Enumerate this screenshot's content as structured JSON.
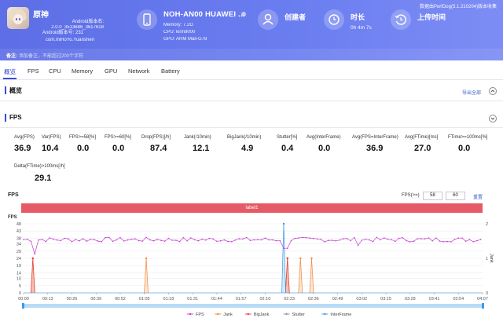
{
  "header": {
    "app_name": "原神",
    "android_version_line": "Android版本名:",
    "version_name": "2.0.0_3513686_3617618",
    "version_code_line": "Android版本号: 231",
    "package": "com.miHoYo.Yuanshen",
    "device_name": "NOH-AN00 HUAWEI ...",
    "memory": "Memory: 7.2G",
    "cpu": "CPU: kirin9000",
    "gpu": "GPU: ARM Mali-G78",
    "creator_label": "创建者",
    "creator_value": "",
    "duration_label": "时长",
    "duration_value": "0h 4m 7s",
    "upload_label": "上传时间",
    "upload_value": "",
    "data_source": "数据由PerfDog(5.1.210204)版本收集",
    "note_label": "备注:",
    "note_placeholder": "添加备注，不能超过200个字符"
  },
  "tabs": [
    "概览",
    "FPS",
    "CPU",
    "Memory",
    "GPU",
    "Network",
    "Battery"
  ],
  "overview": {
    "title": "概览",
    "export": "导出全部"
  },
  "fps_section": {
    "title": "FPS",
    "metrics": [
      {
        "label": "Avg(FPS)",
        "value": "36.9"
      },
      {
        "label": "Var(FPS)",
        "value": "10.4"
      },
      {
        "label": "FPS>=58[%]",
        "value": "0.0"
      },
      {
        "label": "FPS>=60[%]",
        "value": "0.0"
      },
      {
        "label": "Drop(FPS)[/h]",
        "value": "87.4"
      },
      {
        "label": "Jank(/10min)",
        "value": "12.1"
      },
      {
        "label": "BigJank(/10min)",
        "value": "4.9"
      },
      {
        "label": "Stutter[%]",
        "value": "0.4"
      },
      {
        "label": "Avg(InterFrame)",
        "value": "0.0"
      },
      {
        "label": "Avg(FPS=InterFrame)",
        "value": "36.9"
      },
      {
        "label": "Avg(FTime)[ms]",
        "value": "27.0"
      },
      {
        "label": "FTime>=100ms[%]",
        "value": "0.0"
      },
      {
        "label": "Delta(FTime)>100ms[/h]",
        "value": "29.1"
      }
    ],
    "chart_label": "FPS",
    "threshold_label": "FPS(>=)",
    "threshold_1": "58",
    "threshold_2": "60",
    "reset": "重置",
    "band_label": "label1"
  },
  "chart_data": {
    "type": "line",
    "title": "FPS",
    "y_ticks": [
      "48",
      "43",
      "38",
      "34",
      "29",
      "24",
      "19",
      "14",
      "10",
      "5",
      "0"
    ],
    "y_right_ticks": [
      "2",
      "1",
      "0"
    ],
    "y_right_label": "Jank",
    "ylim": [
      0,
      48
    ],
    "x_ticks": [
      "00:00",
      "00:13",
      "00:26",
      "00:39",
      "00:52",
      "01:05",
      "01:18",
      "01:31",
      "01:44",
      "01:57",
      "02:10",
      "02:23",
      "02:36",
      "02:49",
      "03:02",
      "03:15",
      "03:28",
      "03:41",
      "03:54",
      "04:07"
    ],
    "duration_s": 247,
    "fps_base": 37,
    "fps_dips": [
      {
        "t": 6,
        "fps": 27
      },
      {
        "t": 140,
        "fps": 28
      },
      {
        "t": 141,
        "fps": 31
      },
      {
        "t": 180,
        "fps": 33
      }
    ],
    "jank_events_s": [
      5,
      66,
      142,
      149,
      155
    ],
    "bigjank_events_s": [
      5,
      142
    ],
    "stutter_events_s": [
      140
    ],
    "interframe": 0,
    "legend": [
      {
        "name": "FPS",
        "color": "#c63fcf"
      },
      {
        "name": "Jank",
        "color": "#f08a3a"
      },
      {
        "name": "BigJank",
        "color": "#e2403c"
      },
      {
        "name": "Stutter",
        "color": "#8a93a8"
      },
      {
        "name": "InterFrame",
        "color": "#3a9ce6"
      }
    ]
  }
}
